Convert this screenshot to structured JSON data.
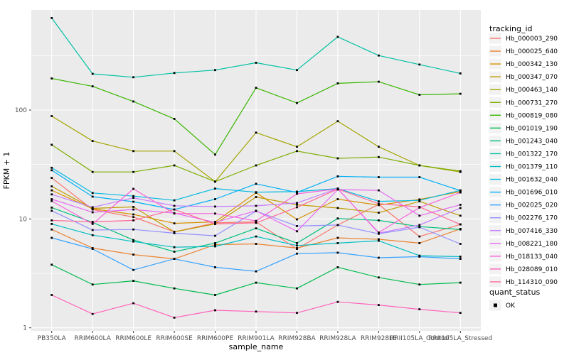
{
  "chart_data": {
    "type": "line",
    "title": "",
    "xlabel": "sample_name",
    "ylabel": "FPKM + 1",
    "yscale": "log10",
    "yticks": [
      1,
      10,
      100
    ],
    "ylim": [
      0.94,
      830
    ],
    "grid": "major-and-minor-horizontal, major-vertical, white on grey panel",
    "legend_position": "right",
    "categories": [
      "PB350LA",
      "RRIM600LA",
      "RRIM600LE",
      "RRIM600SE",
      "RRIM600PE",
      "RRIM901LA",
      "RRIM928BA",
      "RRIM928LA",
      "RRIM928LE",
      "RRII105LA_Control",
      "RRII105LA_Stressed"
    ],
    "series": [
      {
        "name": "Hb_000003_290",
        "color": "#F8766D",
        "values": [
          23.8,
          12.2,
          10.4,
          7.6,
          9.2,
          9.4,
          5.3,
          8.8,
          13.6,
          6.9,
          8.9
        ]
      },
      {
        "name": "Hb_000025_640",
        "color": "#EA8331",
        "values": [
          8.0,
          5.4,
          4.7,
          4.3,
          5.8,
          5.9,
          5.4,
          6.7,
          6.5,
          6.0,
          8.1
        ]
      },
      {
        "name": "Hb_000342_130",
        "color": "#D89000",
        "values": [
          18.3,
          12.4,
          11.0,
          9.1,
          9.4,
          17.4,
          9.9,
          15.2,
          13.4,
          15.1,
          17.8
        ]
      },
      {
        "name": "Hb_000347_070",
        "color": "#C09B00",
        "values": [
          19.9,
          12.5,
          12.9,
          7.6,
          9.0,
          15.9,
          13.5,
          12.6,
          11.4,
          14.5,
          10.7
        ]
      },
      {
        "name": "Hb_000463_140",
        "color": "#A3A500",
        "values": [
          88,
          52,
          42,
          42,
          22,
          62,
          46,
          79,
          46,
          31,
          27
        ]
      },
      {
        "name": "Hb_000731_270",
        "color": "#7CAE00",
        "values": [
          48,
          27,
          27,
          31,
          22,
          31,
          42,
          36,
          37,
          31,
          27.5
        ]
      },
      {
        "name": "Hb_000819_080",
        "color": "#39B600",
        "values": [
          195,
          165,
          120,
          83,
          39,
          160,
          116,
          176,
          182,
          138,
          141
        ]
      },
      {
        "name": "Hb_001019_190",
        "color": "#00BB4E",
        "values": [
          3.8,
          2.5,
          2.7,
          2.3,
          2.0,
          2.6,
          2.3,
          3.6,
          2.9,
          2.5,
          2.6
        ]
      },
      {
        "name": "Hb_001243_040",
        "color": "#00BF7D",
        "values": [
          12.7,
          9.3,
          6.4,
          5.0,
          6.0,
          8.2,
          6.0,
          10.1,
          9.7,
          8.5,
          8.0
        ]
      },
      {
        "name": "Hb_001322_170",
        "color": "#00C1A3",
        "values": [
          700,
          215,
          200,
          219,
          233,
          272,
          233,
          470,
          317,
          262,
          217
        ]
      },
      {
        "name": "Hb_001379_110",
        "color": "#00BFC4",
        "values": [
          9.0,
          7.1,
          6.2,
          5.5,
          5.6,
          6.9,
          5.7,
          6.0,
          6.3,
          4.6,
          4.5
        ]
      },
      {
        "name": "Hb_001632_040",
        "color": "#00BAE0",
        "values": [
          29.5,
          17.3,
          16.2,
          14.8,
          19.0,
          17.6,
          17.8,
          19.0,
          14.5,
          14.8,
          18.3
        ]
      },
      {
        "name": "Hb_001696_010",
        "color": "#00B0F6",
        "values": [
          28.0,
          16.0,
          14.4,
          12.2,
          15.2,
          21.0,
          17.5,
          24.6,
          24.2,
          24.2,
          18.2
        ]
      },
      {
        "name": "Hb_002025_020",
        "color": "#35A2FF",
        "values": [
          6.7,
          5.3,
          3.4,
          4.3,
          3.6,
          3.3,
          4.8,
          4.9,
          4.4,
          4.5,
          4.3
        ]
      },
      {
        "name": "Hb_002276_170",
        "color": "#9590FF",
        "values": [
          11.9,
          7.9,
          8.0,
          7.4,
          7.0,
          11.8,
          8.6,
          8.8,
          7.3,
          8.4,
          5.9
        ]
      },
      {
        "name": "Hb_007416_330",
        "color": "#C77CFF",
        "values": [
          16.8,
          12.8,
          15.6,
          13.2,
          13.0,
          13.2,
          14.0,
          19.0,
          7.4,
          8.8,
          12.6
        ]
      },
      {
        "name": "Hb_008221_180",
        "color": "#E76BF3",
        "values": [
          15.2,
          11.5,
          12.2,
          11.3,
          9.3,
          11.9,
          7.7,
          18.6,
          18.3,
          10.7,
          13.5
        ]
      },
      {
        "name": "Hb_018133_040",
        "color": "#FA62DB",
        "values": [
          14.6,
          9.0,
          18.9,
          11.2,
          11.2,
          9.6,
          17.0,
          18.9,
          7.5,
          12.7,
          17.5
        ]
      },
      {
        "name": "Hb_028089_010",
        "color": "#FF62BC",
        "values": [
          2.0,
          1.34,
          1.68,
          1.24,
          1.45,
          1.41,
          1.37,
          1.73,
          1.62,
          1.48,
          1.37
        ]
      },
      {
        "name": "Hb_114310_090",
        "color": "#FF6A98",
        "values": [
          9.7,
          9.4,
          9.7,
          12.2,
          9.0,
          9.2,
          12.8,
          18.8,
          13.8,
          12.9,
          8.9
        ]
      }
    ],
    "legend": {
      "tracking_title": "tracking_id",
      "quant_title": "quant_status",
      "quant_items": [
        {
          "label": "OK"
        }
      ]
    },
    "marker": {
      "shape": "square",
      "color": "#000000",
      "legend_label_meaning": "quant_status OK"
    },
    "colors": {
      "panel_bg": "#EBEBEB",
      "grid": "#FFFFFF",
      "axis_text": "#4D4D4D",
      "tick_mark": "#333333",
      "legend_key_bg": "#F2F2F2",
      "plot_bg": "#FFFFFF"
    }
  }
}
